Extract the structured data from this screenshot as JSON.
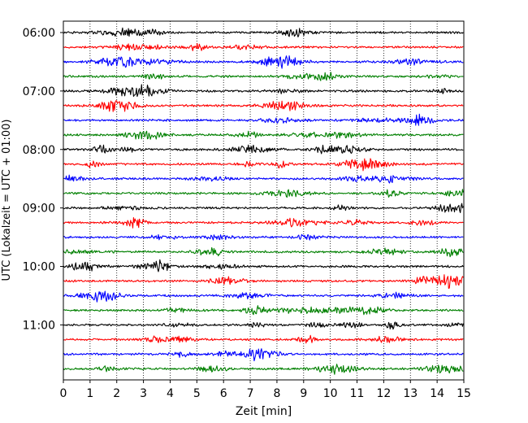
{
  "chart_data": {
    "type": "line",
    "title": "",
    "xlabel": "Zeit  [min]",
    "ylabel": "UTC (Lokalzeit = UTC + 01:00)",
    "xlim": [
      0,
      15
    ],
    "x_ticks": [
      0,
      1,
      2,
      3,
      4,
      5,
      6,
      7,
      8,
      9,
      10,
      11,
      12,
      13,
      14,
      15
    ],
    "x_tick_labels": [
      "0",
      "1",
      "2",
      "3",
      "4",
      "5",
      "6",
      "7",
      "8",
      "9",
      "10",
      "11",
      "12",
      "13",
      "14",
      "15"
    ],
    "y_ticks": [
      "06:00",
      "07:00",
      "08:00",
      "09:00",
      "10:00",
      "11:00"
    ],
    "grid": "x-dotted",
    "traces_per_hour": 4,
    "trace_minutes": 15,
    "trace_colors": [
      "#000000",
      "#ff0000",
      "#0000ff",
      "#008000"
    ],
    "series": [
      {
        "start": "06:00",
        "color": "#000000"
      },
      {
        "start": "06:15",
        "color": "#ff0000"
      },
      {
        "start": "06:30",
        "color": "#0000ff"
      },
      {
        "start": "06:45",
        "color": "#008000"
      },
      {
        "start": "07:00",
        "color": "#000000"
      },
      {
        "start": "07:15",
        "color": "#ff0000"
      },
      {
        "start": "07:30",
        "color": "#0000ff"
      },
      {
        "start": "07:45",
        "color": "#008000"
      },
      {
        "start": "08:00",
        "color": "#000000"
      },
      {
        "start": "08:15",
        "color": "#ff0000"
      },
      {
        "start": "08:30",
        "color": "#0000ff"
      },
      {
        "start": "08:45",
        "color": "#008000"
      },
      {
        "start": "09:00",
        "color": "#000000"
      },
      {
        "start": "09:15",
        "color": "#ff0000"
      },
      {
        "start": "09:30",
        "color": "#0000ff"
      },
      {
        "start": "09:45",
        "color": "#008000"
      },
      {
        "start": "10:00",
        "color": "#000000"
      },
      {
        "start": "10:15",
        "color": "#ff0000"
      },
      {
        "start": "10:30",
        "color": "#0000ff"
      },
      {
        "start": "10:45",
        "color": "#008000"
      },
      {
        "start": "11:00",
        "color": "#000000"
      },
      {
        "start": "11:15",
        "color": "#ff0000"
      },
      {
        "start": "11:30",
        "color": "#0000ff"
      },
      {
        "start": "11:45",
        "color": "#008000"
      }
    ]
  }
}
